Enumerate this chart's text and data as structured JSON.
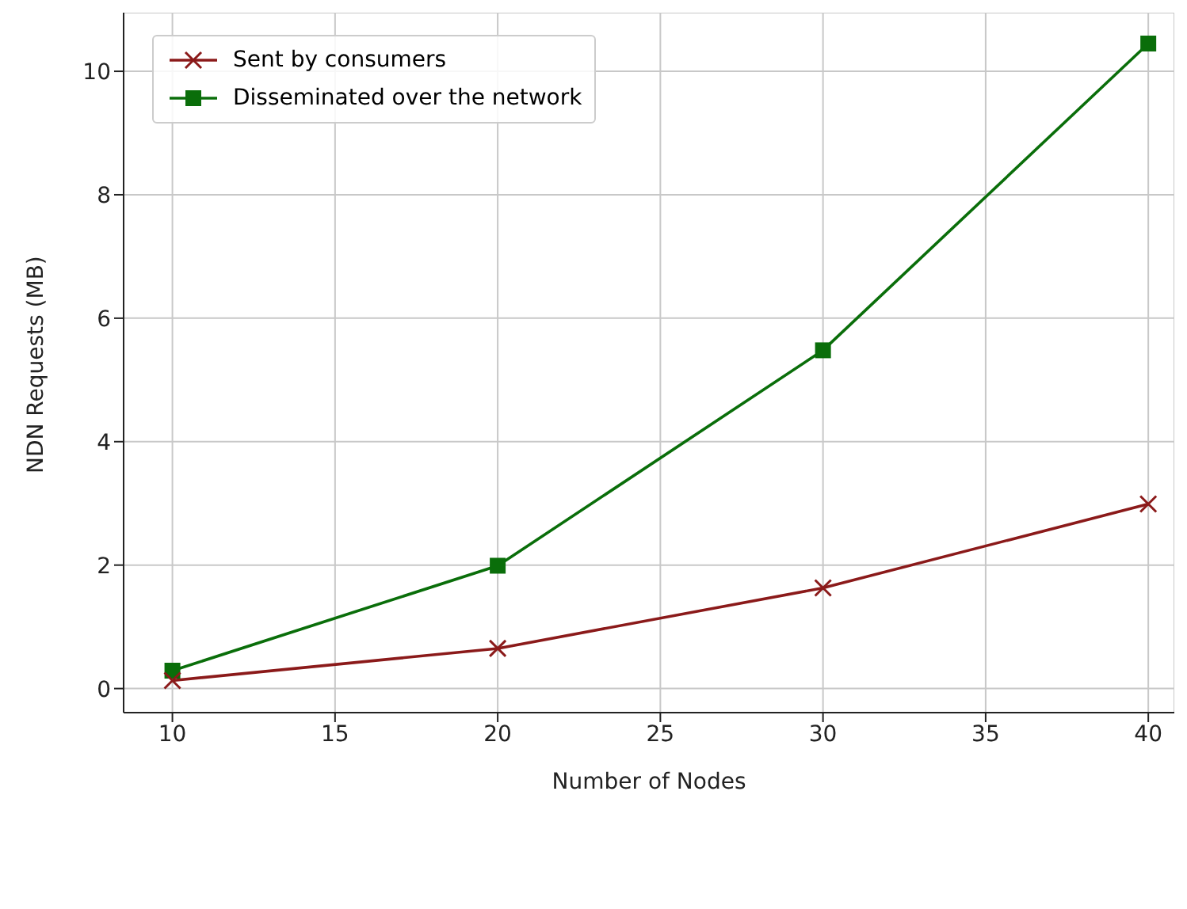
{
  "chart_data": {
    "type": "line",
    "xlabel": "Number of Nodes",
    "ylabel": "NDN Requests (MB)",
    "x": [
      10,
      20,
      30,
      40
    ],
    "series": [
      {
        "name": "Sent by consumers",
        "color": "#8b1a1a",
        "marker": "cross",
        "values": [
          0.13,
          0.65,
          1.63,
          2.99
        ]
      },
      {
        "name": "Disseminated over the network",
        "color": "#0a6e0a",
        "marker": "square",
        "values": [
          0.29,
          1.99,
          5.48,
          10.45
        ]
      }
    ],
    "xlim": [
      8.5,
      40.8
    ],
    "xticks": [
      10,
      15,
      20,
      25,
      30,
      35,
      40
    ],
    "ylim": [
      -0.39,
      10.95
    ],
    "yticks": [
      0,
      2,
      4,
      6,
      8,
      10
    ],
    "grid": true,
    "legend": "top left",
    "line_style": "solid"
  }
}
